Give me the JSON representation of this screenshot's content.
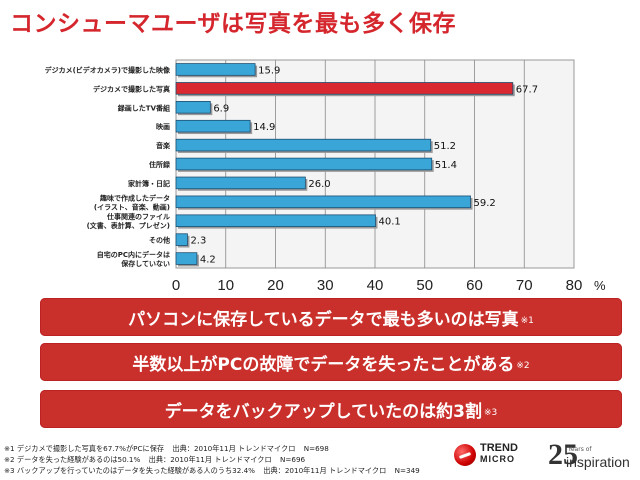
{
  "title": "コンシューマユーザは写真を最も多く保存",
  "chart_data": {
    "type": "bar",
    "orientation": "horizontal",
    "categories": [
      [
        "デジカメ(ビデオカメラ)で撮影した映像"
      ],
      [
        "デジカメで撮影した写真"
      ],
      [
        "録画したTV番組"
      ],
      [
        "映画"
      ],
      [
        "音楽"
      ],
      [
        "住所録"
      ],
      [
        "家計簿・日記"
      ],
      [
        "趣味で作成したデータ",
        "(イラスト、音楽、動画)"
      ],
      [
        "仕事関連のファイル",
        "(文書、表計算、プレゼン)"
      ],
      [
        "その他"
      ],
      [
        "自宅のPC内にデータは",
        "保存していない"
      ]
    ],
    "values": [
      15.9,
      67.7,
      6.9,
      14.9,
      51.2,
      51.4,
      26.0,
      59.2,
      40.1,
      2.3,
      4.2
    ],
    "value_labels": [
      "15.9",
      "67.7",
      "6.9",
      "14.9",
      "51.2",
      "51.4",
      "26.0",
      "59.2",
      "40.1",
      "2.3",
      "4.2"
    ],
    "highlight_index": 1,
    "colors": {
      "normal": "#3aa6d8",
      "highlight": "#d9282f"
    },
    "xlim": [
      0,
      80
    ],
    "xticks": [
      "0",
      "10",
      "20",
      "30",
      "40",
      "50",
      "60",
      "70",
      "80"
    ],
    "xunit": "%",
    "grid": true
  },
  "banners": [
    {
      "text": "パソコンに保存しているデータで最も多いのは写真",
      "ref": "※1"
    },
    {
      "text": "半数以上がPCの故障でデータを失ったことがある",
      "ref": "※2"
    },
    {
      "text": "データをバックアップしていたのは約3割",
      "ref": "※3"
    }
  ],
  "notes": [
    [
      "※1 デジカメで撮影した写真を67.7%がPCに保存",
      "出典：2010年11月 トレンドマイクロ",
      "N=698"
    ],
    [
      "※2 データを失った経験があるのは50.1%",
      "出典：2010年11月 トレンドマイクロ",
      "N=696"
    ],
    [
      "※3 バックアップを行っていたのはデータを失った経験がある人のうち32.4%",
      "出典：2010年11月 トレンドマイクロ",
      "N=349"
    ]
  ],
  "logo": {
    "line1": "TREND",
    "line2": "MICRO"
  },
  "anniversary": {
    "number": "25",
    "years": "Years of",
    "word": "inspiration"
  }
}
